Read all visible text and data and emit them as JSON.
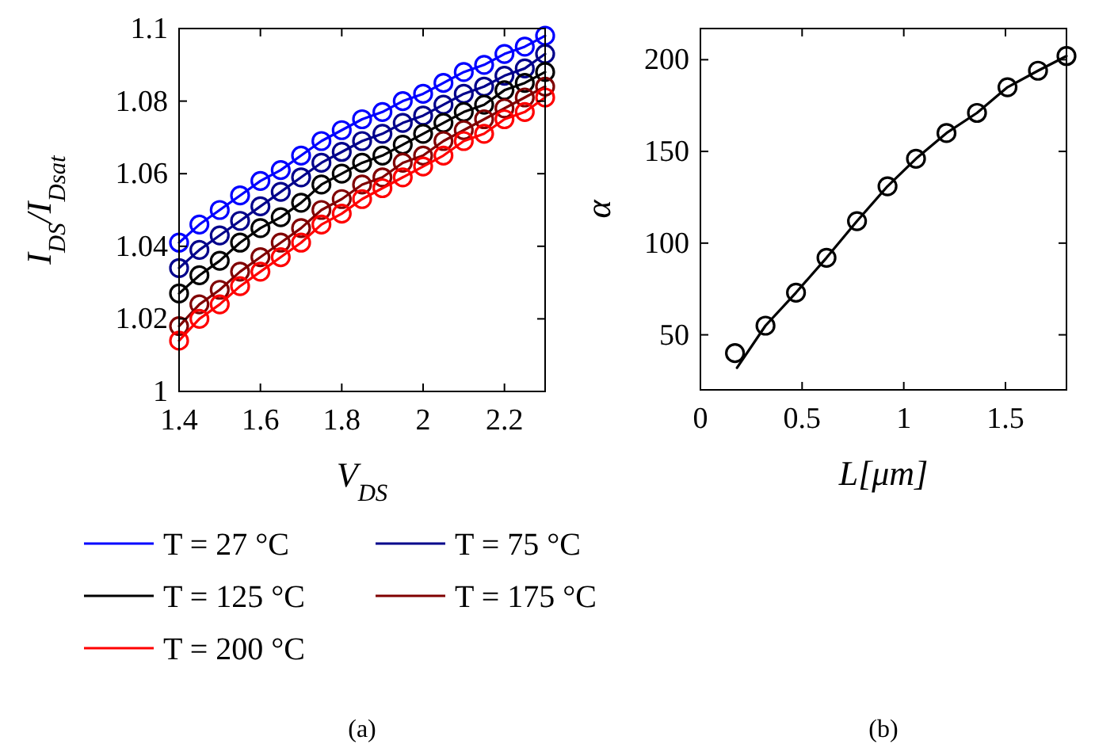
{
  "chart_data": [
    {
      "type": "line",
      "xlabel": "V$_{DS}$",
      "ylabel": "I$_{DS}$/I$_{Dsat}$",
      "x": [
        1.4,
        1.45,
        1.5,
        1.55,
        1.6,
        1.65,
        1.7,
        1.75,
        1.8,
        1.85,
        1.9,
        1.95,
        2.0,
        2.05,
        2.1,
        2.15,
        2.2,
        2.25,
        2.3
      ],
      "xlim": [
        1.4,
        2.3
      ],
      "ylim": [
        1,
        1.1
      ],
      "xticks": [
        1.4,
        1.6,
        1.8,
        {
          "value": 2,
          "label": "2"
        },
        2.2
      ],
      "yticks": [
        {
          "value": 1,
          "label": "1"
        },
        1.02,
        1.04,
        1.06,
        1.08,
        1.1
      ],
      "marker": "circle",
      "legend": "bottom",
      "annotations": [
        "(a)"
      ],
      "series": [
        {
          "name": "T = 27 °C",
          "color": "#0000ff",
          "values": [
            1.041,
            1.046,
            1.05,
            1.054,
            1.058,
            1.061,
            1.065,
            1.069,
            1.072,
            1.075,
            1.077,
            1.08,
            1.082,
            1.085,
            1.088,
            1.09,
            1.093,
            1.095,
            1.098
          ]
        },
        {
          "name": "T = 75 °C",
          "color": "#00008b",
          "values": [
            1.034,
            1.039,
            1.043,
            1.047,
            1.051,
            1.055,
            1.059,
            1.063,
            1.066,
            1.069,
            1.071,
            1.074,
            1.076,
            1.079,
            1.082,
            1.084,
            1.087,
            1.089,
            1.093
          ]
        },
        {
          "name": "T = 125 °C",
          "color": "#000000",
          "values": [
            1.027,
            1.032,
            1.036,
            1.041,
            1.045,
            1.048,
            1.052,
            1.057,
            1.06,
            1.063,
            1.065,
            1.068,
            1.071,
            1.074,
            1.077,
            1.079,
            1.083,
            1.085,
            1.088
          ]
        },
        {
          "name": "T = 175 °C",
          "color": "#800000",
          "values": [
            1.018,
            1.024,
            1.028,
            1.033,
            1.037,
            1.041,
            1.045,
            1.05,
            1.053,
            1.057,
            1.059,
            1.063,
            1.065,
            1.069,
            1.072,
            1.075,
            1.078,
            1.081,
            1.084
          ]
        },
        {
          "name": "T = 200 °C",
          "color": "#ff0000",
          "values": [
            1.014,
            1.02,
            1.024,
            1.029,
            1.033,
            1.037,
            1.041,
            1.046,
            1.049,
            1.053,
            1.056,
            1.059,
            1.062,
            1.065,
            1.069,
            1.071,
            1.075,
            1.077,
            1.081
          ]
        }
      ]
    },
    {
      "type": "scatter",
      "xlabel": "L[μm]",
      "ylabel": "α",
      "xlim": [
        0,
        1.8
      ],
      "ylim": [
        20,
        217
      ],
      "xticks": [
        0,
        0.5,
        1,
        1.5
      ],
      "yticks": [
        50,
        100,
        150,
        200
      ],
      "marker": "circle",
      "annotations": [
        "(b)"
      ],
      "series": [
        {
          "type": "scatter",
          "color": "#000000",
          "x": [
            0.17,
            0.32,
            0.47,
            0.62,
            0.77,
            0.92,
            1.06,
            1.21,
            1.36,
            1.51,
            1.66,
            1.8
          ],
          "values": [
            40,
            55,
            73,
            92,
            112,
            131,
            146,
            160,
            171,
            185,
            194,
            202
          ]
        },
        {
          "type": "line",
          "marker": "none",
          "color": "#000000",
          "x": [
            0.18,
            0.32,
            0.47,
            0.62,
            0.77,
            0.92,
            1.06,
            1.21,
            1.36,
            1.51,
            1.66,
            1.8
          ],
          "values": [
            32,
            55,
            73,
            92,
            112,
            131,
            146,
            160,
            171,
            185,
            194,
            202
          ]
        }
      ]
    }
  ]
}
